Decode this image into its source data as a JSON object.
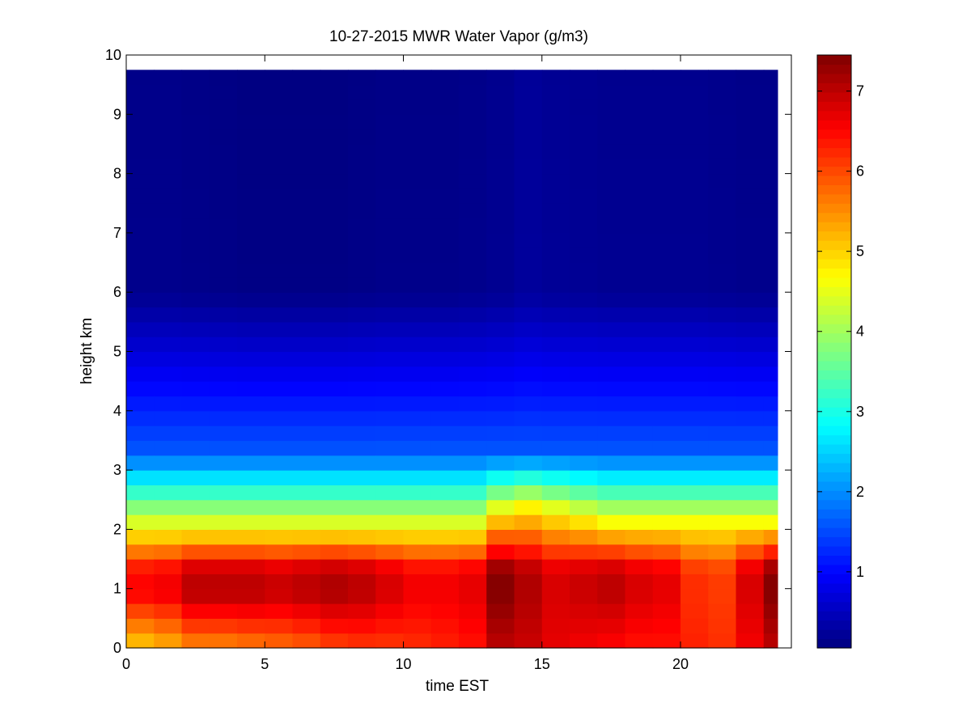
{
  "chart_data": {
    "type": "heatmap",
    "title": "10-27-2015 MWR Water Vapor (g/m3)",
    "xlabel": "time EST",
    "ylabel": "height km",
    "xlim": [
      0,
      24
    ],
    "ylim": [
      0,
      10
    ],
    "x_ticks": [
      "0",
      "5",
      "10",
      "15",
      "20"
    ],
    "y_ticks": [
      "0",
      "1",
      "2",
      "3",
      "4",
      "5",
      "6",
      "7",
      "8",
      "9",
      "10"
    ],
    "colormap": "jet",
    "colorbar": {
      "range": [
        0.05,
        7.45
      ],
      "ticks": [
        "1",
        "2",
        "3",
        "4",
        "5",
        "6",
        "7"
      ]
    },
    "grid": false,
    "time_bins": [
      0.5,
      1.5,
      2.5,
      3.5,
      4.5,
      5.5,
      6.5,
      7.5,
      8.5,
      9.5,
      10.5,
      11.5,
      12.5,
      13.5,
      14.5,
      15.5,
      16.5,
      17.5,
      18.5,
      19.5,
      20.5,
      21.5,
      22.5,
      23.5
    ],
    "time_extent": [
      0,
      23.5
    ],
    "height_extent": [
      0,
      9.75
    ],
    "surface_value_by_time": [
      5.0,
      5.2,
      5.5,
      5.5,
      5.6,
      5.7,
      5.8,
      6.0,
      6.1,
      6.1,
      6.2,
      6.3,
      6.4,
      7.0,
      6.9,
      6.7,
      6.6,
      6.5,
      6.4,
      6.4,
      6.3,
      6.2,
      6.6,
      7.0
    ],
    "peak_value_by_time": [
      6.5,
      6.6,
      7.0,
      7.0,
      7.0,
      6.9,
      7.0,
      7.1,
      7.0,
      6.8,
      6.6,
      6.6,
      6.7,
      7.4,
      7.1,
      6.8,
      6.9,
      7.0,
      6.8,
      6.7,
      6.2,
      6.1,
      6.8,
      7.4
    ],
    "moist_layer_top_km_by_time": [
      2.0,
      2.0,
      2.0,
      2.0,
      2.0,
      2.0,
      2.0,
      2.0,
      2.0,
      2.0,
      2.0,
      2.0,
      2.0,
      2.3,
      2.4,
      2.3,
      2.2,
      2.1,
      2.1,
      2.1,
      2.1,
      2.1,
      2.1,
      2.1
    ],
    "upper_value_by_time": [
      0.8,
      0.8,
      0.7,
      0.6,
      0.5,
      0.5,
      0.5,
      0.5,
      0.6,
      0.7,
      0.7,
      0.7,
      0.8,
      1.0,
      1.4,
      1.2,
      1.1,
      1.0,
      1.0,
      1.0,
      1.0,
      0.9,
      0.8,
      0.8
    ]
  }
}
